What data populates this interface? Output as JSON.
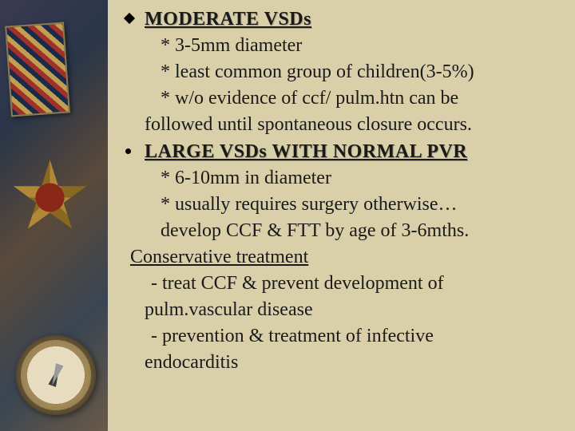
{
  "colors": {
    "background": "#d9cfa8",
    "text": "#1a1a1a",
    "bullet": "#000000"
  },
  "typography": {
    "font_family": "Georgia / Times New Roman serif",
    "body_fontsize_pt": 18,
    "heading_weight": "bold",
    "heading_underline": true,
    "heading_shadow": true
  },
  "sections": [
    {
      "bullet": "diamond",
      "heading": "MODERATE  VSDs",
      "lines": [
        "* 3-5mm diameter",
        "* least common group of children(3-5%)",
        "* w/o evidence of ccf/ pulm.htn can be",
        "followed until spontaneous closure occurs."
      ]
    },
    {
      "bullet": "dot",
      "heading": "LARGE  VSDs WITH NORMAL PVR",
      "lines": [
        "* 6-10mm in diameter",
        "* usually requires surgery otherwise…",
        " develop CCF & FTT by age of 3-6mths."
      ]
    }
  ],
  "conservative": {
    "title": "Conservative treatment",
    "lines": [
      " - treat CCF & prevent development of",
      "pulm.vascular disease",
      " - prevention & treatment of  infective",
      "endocarditis"
    ]
  }
}
